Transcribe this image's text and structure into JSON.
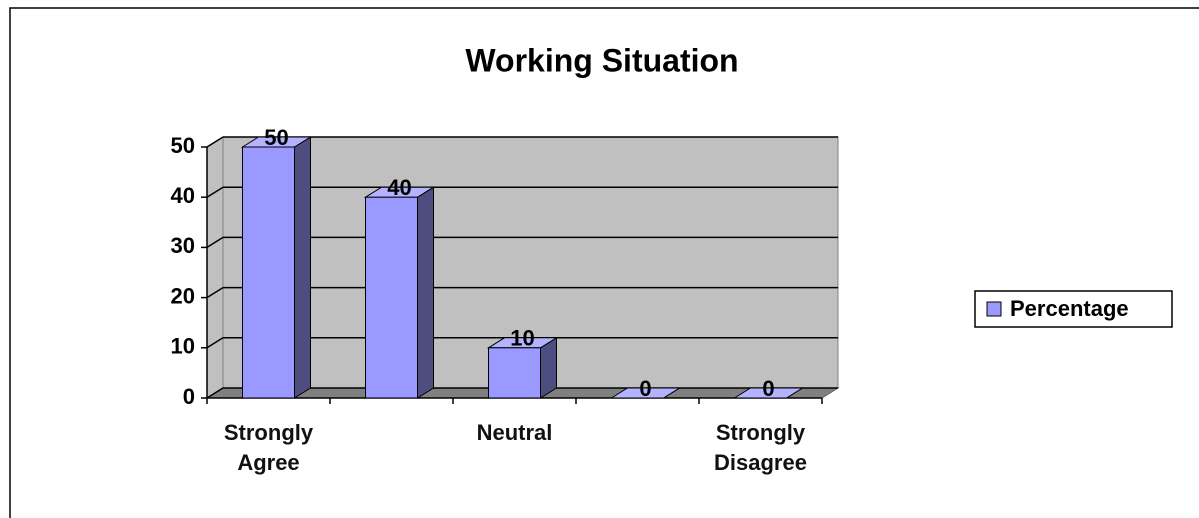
{
  "chart_data": {
    "type": "bar",
    "title": "Working Situation",
    "categories": [
      "Strongly Agree",
      null,
      "Neutral",
      null,
      "Strongly Disagree"
    ],
    "series": [
      {
        "name": "Percentage",
        "color": "#9999ff",
        "values": [
          50,
          40,
          10,
          0,
          0
        ]
      }
    ],
    "ylim": [
      0,
      50
    ],
    "yticks": [
      0,
      10,
      20,
      30,
      40,
      50
    ],
    "grid": true,
    "legend": "right"
  }
}
